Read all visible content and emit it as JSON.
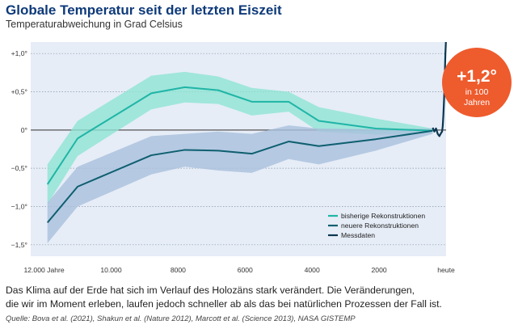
{
  "header": {
    "title": "Globale Temperatur seit der letzten Eiszeit",
    "subtitle": "Temperaturabweichung in Grad Celsius"
  },
  "badge": {
    "value": "+1,2°",
    "line1": "in 100",
    "line2": "Jahren"
  },
  "caption": {
    "line1": "Das Klima auf der Erde hat sich im Verlauf des Holozäns stark verändert. Die Veränderungen,",
    "line2": "die wir im Moment erleben, laufen jedoch schneller ab als das bei natürlichen Prozessen der Fall ist."
  },
  "source": "Quelle: Bova et al. (2021), Shakun et al. (Nature 2012), Marcott et al. (Science 2013), NASA GISTEMP",
  "colors": {
    "plot_background": "#e6edf7",
    "bisherige": "#1fb5a6",
    "bisherige_band": "#8fe3d3",
    "neuere": "#0e5f70",
    "neuere_band": "#a9bfdc",
    "messdaten": "#0b3650",
    "badge": "#ee5b2d"
  },
  "chart_data": {
    "type": "line",
    "xlabel": "",
    "ylabel": "",
    "x_ticks": [
      {
        "value": 12000,
        "label": "12.000 Jahre"
      },
      {
        "value": 10000,
        "label": "10.000"
      },
      {
        "value": 8000,
        "label": "8000"
      },
      {
        "value": 6000,
        "label": "6000"
      },
      {
        "value": 4000,
        "label": "4000"
      },
      {
        "value": 2000,
        "label": "2000"
      },
      {
        "value": 0,
        "label": "heute"
      }
    ],
    "y_ticks": [
      {
        "value": 1.0,
        "label": "+1,0°"
      },
      {
        "value": 0.5,
        "label": "+0,5°"
      },
      {
        "value": 0.0,
        "label": "0°"
      },
      {
        "value": -0.5,
        "label": "−0,5°"
      },
      {
        "value": -1.0,
        "label": "−1,0°"
      },
      {
        "value": -1.5,
        "label": "−1,5°"
      }
    ],
    "xlim": [
      12400,
      0
    ],
    "ylim": [
      -1.65,
      1.15
    ],
    "legend_position": "bottom-right",
    "series": [
      {
        "name": "bisherige Rekonstruktionen",
        "color": "#1fb5a6",
        "band_color": "#8fe3d3",
        "x": [
          11900,
          11000,
          8800,
          7800,
          6800,
          5800,
          4700,
          3800,
          2100,
          400
        ],
        "y": [
          -0.71,
          -0.11,
          0.48,
          0.56,
          0.52,
          0.37,
          0.37,
          0.12,
          0.02,
          -0.01
        ],
        "upper": [
          -0.45,
          0.12,
          0.71,
          0.76,
          0.7,
          0.55,
          0.5,
          0.3,
          0.15,
          0.02
        ],
        "lower": [
          -0.97,
          -0.34,
          0.27,
          0.36,
          0.34,
          0.19,
          0.24,
          -0.02,
          -0.06,
          -0.04
        ]
      },
      {
        "name": "neuere Rekonstruktionen",
        "color": "#0e5f70",
        "band_color": "#a9bfdc",
        "x": [
          11900,
          11000,
          8800,
          7800,
          6800,
          5800,
          4700,
          3800,
          2100,
          400
        ],
        "y": [
          -1.21,
          -0.74,
          -0.33,
          -0.26,
          -0.27,
          -0.31,
          -0.15,
          -0.21,
          -0.12,
          -0.01
        ],
        "upper": [
          -0.95,
          -0.48,
          -0.08,
          -0.05,
          -0.02,
          -0.05,
          0.06,
          0.02,
          0.01,
          0.02
        ],
        "lower": [
          -1.48,
          -1.0,
          -0.58,
          -0.48,
          -0.53,
          -0.56,
          -0.38,
          -0.45,
          -0.27,
          -0.05
        ]
      },
      {
        "name": "Messdaten",
        "color": "#0b3650",
        "x": [
          400,
          350,
          300,
          250,
          200,
          150,
          120,
          100,
          80,
          60,
          40,
          30,
          20,
          10,
          5
        ],
        "y": [
          0.03,
          -0.02,
          0.02,
          -0.05,
          -0.08,
          -0.04,
          -0.02,
          0.05,
          0.2,
          0.4,
          0.65,
          0.85,
          1.0,
          1.1,
          1.15
        ]
      }
    ]
  }
}
